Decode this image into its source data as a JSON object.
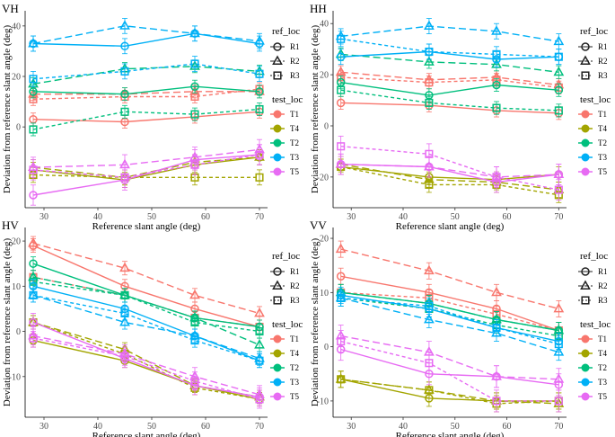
{
  "figure": {
    "xlabel": "Reference slant angle (deg)",
    "ylabel": "Deviation from reference slant angle (deg)",
    "legend": {
      "ref_title": "ref_loc",
      "refs": [
        {
          "label": "R1",
          "shape": "circle",
          "dash": "solid"
        },
        {
          "label": "R2",
          "shape": "triangle",
          "dash": "long-dash"
        },
        {
          "label": "R3",
          "shape": "square",
          "dash": "short-dash"
        }
      ],
      "test_title": "test_loc",
      "tests": [
        {
          "label": "T1",
          "color": "#F8766D"
        },
        {
          "label": "T4",
          "color": "#A3A500"
        },
        {
          "label": "T2",
          "color": "#00BF7D"
        },
        {
          "label": "T3",
          "color": "#00B0F6"
        },
        {
          "label": "T5",
          "color": "#E76BF3"
        }
      ]
    }
  },
  "chart_data": [
    {
      "type": "line",
      "title": "VH",
      "x": [
        28,
        45,
        58,
        70
      ],
      "xlim": [
        26.5,
        71.5
      ],
      "ylim": [
        -32,
        46
      ],
      "xticks": [
        30,
        40,
        50,
        60,
        70
      ],
      "yticks": [
        0,
        20,
        40
      ],
      "series": [
        {
          "test": "T1",
          "ref": "R1",
          "values": [
            3,
            2,
            4,
            6
          ],
          "err": 2.5
        },
        {
          "test": "T1",
          "ref": "R2",
          "values": [
            13,
            13,
            14,
            14
          ],
          "err": 2.5
        },
        {
          "test": "T1",
          "ref": "R3",
          "values": [
            11,
            12,
            12,
            15
          ],
          "err": 2.5
        },
        {
          "test": "T4",
          "ref": "R1",
          "values": [
            -17,
            -21,
            -15,
            -12
          ],
          "err": 3
        },
        {
          "test": "T4",
          "ref": "R2",
          "values": [
            -16,
            -20,
            -14,
            -12
          ],
          "err": 3
        },
        {
          "test": "T4",
          "ref": "R3",
          "values": [
            -19,
            -20,
            -20,
            -20
          ],
          "err": 3
        },
        {
          "test": "T2",
          "ref": "R1",
          "values": [
            14,
            13,
            16,
            14
          ],
          "err": 2.5
        },
        {
          "test": "T2",
          "ref": "R2",
          "values": [
            17,
            23,
            24,
            22
          ],
          "err": 2.5
        },
        {
          "test": "T2",
          "ref": "R3",
          "values": [
            -1,
            6,
            5,
            7
          ],
          "err": 2.5
        },
        {
          "test": "T3",
          "ref": "R1",
          "values": [
            33,
            32,
            37,
            33
          ],
          "err": 3
        },
        {
          "test": "T3",
          "ref": "R2",
          "values": [
            33,
            40,
            37,
            34
          ],
          "err": 3
        },
        {
          "test": "T3",
          "ref": "R3",
          "values": [
            19,
            22,
            25,
            21
          ],
          "err": 3
        },
        {
          "test": "T5",
          "ref": "R1",
          "values": [
            -27,
            -21,
            -13,
            -11
          ],
          "err": 4
        },
        {
          "test": "T5",
          "ref": "R2",
          "values": [
            -16,
            -15,
            -12,
            -9
          ],
          "err": 4
        },
        {
          "test": "T5",
          "ref": "R3",
          "values": [
            -17,
            -20,
            -15,
            -11
          ],
          "err": 4
        }
      ]
    },
    {
      "type": "line",
      "title": "HH",
      "x": [
        28,
        45,
        58,
        70
      ],
      "xlim": [
        26.5,
        71.5
      ],
      "ylim": [
        -32,
        45
      ],
      "xticks": [
        30,
        40,
        50,
        60,
        70
      ],
      "yticks": [
        -20,
        0,
        20,
        40
      ],
      "series": [
        {
          "test": "T1",
          "ref": "R1",
          "values": [
            9,
            8,
            6,
            5
          ],
          "err": 2.5
        },
        {
          "test": "T1",
          "ref": "R2",
          "values": [
            21,
            18,
            19,
            16
          ],
          "err": 2.5
        },
        {
          "test": "T1",
          "ref": "R3",
          "values": [
            19,
            17,
            18,
            15
          ],
          "err": 2.5
        },
        {
          "test": "T4",
          "ref": "R1",
          "values": [
            -16,
            -20,
            -21,
            -19
          ],
          "err": 3
        },
        {
          "test": "T4",
          "ref": "R2",
          "values": [
            -15,
            -21,
            -22,
            -25
          ],
          "err": 3
        },
        {
          "test": "T4",
          "ref": "R3",
          "values": [
            -16,
            -23,
            -23,
            -27
          ],
          "err": 3
        },
        {
          "test": "T2",
          "ref": "R1",
          "values": [
            17,
            12,
            16,
            14
          ],
          "err": 2.5
        },
        {
          "test": "T2",
          "ref": "R2",
          "values": [
            28,
            25,
            24,
            21
          ],
          "err": 2.5
        },
        {
          "test": "T2",
          "ref": "R3",
          "values": [
            14,
            9,
            7,
            6
          ],
          "err": 2.5
        },
        {
          "test": "T3",
          "ref": "R1",
          "values": [
            27,
            29,
            26,
            27
          ],
          "err": 3
        },
        {
          "test": "T3",
          "ref": "R2",
          "values": [
            35,
            39,
            37,
            33
          ],
          "err": 3
        },
        {
          "test": "T3",
          "ref": "R3",
          "values": [
            34,
            29,
            28,
            27
          ],
          "err": 3
        },
        {
          "test": "T5",
          "ref": "R1",
          "values": [
            -15,
            -16,
            -22,
            -19
          ],
          "err": 4
        },
        {
          "test": "T5",
          "ref": "R2",
          "values": [
            -15,
            -16,
            -20,
            -19
          ],
          "err": 4
        },
        {
          "test": "T5",
          "ref": "R3",
          "values": [
            -8,
            -11,
            -20,
            -25
          ],
          "err": 4
        }
      ]
    },
    {
      "type": "line",
      "title": "HV",
      "x": [
        28,
        45,
        58,
        70
      ],
      "xlim": [
        26.5,
        71.5
      ],
      "ylim": [
        -19,
        23
      ],
      "xticks": [
        30,
        40,
        50,
        60,
        70
      ],
      "yticks": [
        -10,
        0,
        10,
        20
      ],
      "series": [
        {
          "test": "T1",
          "ref": "R1",
          "values": [
            19,
            10,
            5,
            1
          ],
          "err": 1.5
        },
        {
          "test": "T1",
          "ref": "R2",
          "values": [
            19.5,
            14,
            8,
            4
          ],
          "err": 1.5
        },
        {
          "test": "T1",
          "ref": "R3",
          "values": [
            12,
            8,
            3,
            1
          ],
          "err": 1.5
        },
        {
          "test": "T4",
          "ref": "R1",
          "values": [
            -2,
            -6.5,
            -12,
            -15
          ],
          "err": 1.5
        },
        {
          "test": "T4",
          "ref": "R2",
          "values": [
            2,
            -4,
            -12,
            -14.5
          ],
          "err": 1.5
        },
        {
          "test": "T4",
          "ref": "R3",
          "values": [
            2,
            -5,
            -12.5,
            -15
          ],
          "err": 1.5
        },
        {
          "test": "T2",
          "ref": "R1",
          "values": [
            15,
            8,
            3,
            1
          ],
          "err": 1.5
        },
        {
          "test": "T2",
          "ref": "R2",
          "values": [
            12,
            8,
            3,
            -3
          ],
          "err": 1.5
        },
        {
          "test": "T2",
          "ref": "R3",
          "values": [
            11,
            8,
            2,
            0
          ],
          "err": 1.5
        },
        {
          "test": "T3",
          "ref": "R1",
          "values": [
            10,
            5,
            -1,
            -6.5
          ],
          "err": 1.5
        },
        {
          "test": "T3",
          "ref": "R2",
          "values": [
            8,
            2,
            -1,
            -6
          ],
          "err": 1.5
        },
        {
          "test": "T3",
          "ref": "R3",
          "values": [
            8,
            4,
            -2,
            -6.5
          ],
          "err": 1.5
        },
        {
          "test": "T5",
          "ref": "R1",
          "values": [
            2,
            -6,
            -12,
            -14.5
          ],
          "err": 2
        },
        {
          "test": "T5",
          "ref": "R2",
          "values": [
            -1,
            -5,
            -10,
            -14
          ],
          "err": 2
        },
        {
          "test": "T5",
          "ref": "R3",
          "values": [
            -1.5,
            -5.5,
            -11,
            -15
          ],
          "err": 2
        }
      ]
    },
    {
      "type": "line",
      "title": "VV",
      "x": [
        28,
        45,
        58,
        70
      ],
      "xlim": [
        26.5,
        71.5
      ],
      "ylim": [
        -13,
        22
      ],
      "xticks": [
        30,
        40,
        50,
        60,
        70
      ],
      "yticks": [
        -10,
        0,
        10,
        20
      ],
      "series": [
        {
          "test": "T1",
          "ref": "R1",
          "values": [
            13,
            10,
            7,
            3
          ],
          "err": 1.5
        },
        {
          "test": "T1",
          "ref": "R2",
          "values": [
            18,
            14,
            10,
            7
          ],
          "err": 1.5
        },
        {
          "test": "T1",
          "ref": "R3",
          "values": [
            10,
            9,
            6,
            3
          ],
          "err": 1.5
        },
        {
          "test": "T4",
          "ref": "R1",
          "values": [
            -6,
            -9.5,
            -10,
            -10
          ],
          "err": 1.5
        },
        {
          "test": "T4",
          "ref": "R2",
          "values": [
            -6,
            -8,
            -10,
            -10.5
          ],
          "err": 1.5
        },
        {
          "test": "T4",
          "ref": "R3",
          "values": [
            -6,
            -8,
            -10.5,
            -10
          ],
          "err": 1.5
        },
        {
          "test": "T2",
          "ref": "R1",
          "values": [
            10,
            8,
            5,
            3
          ],
          "err": 1.5
        },
        {
          "test": "T2",
          "ref": "R2",
          "values": [
            10,
            8,
            5,
            3
          ],
          "err": 1.5
        },
        {
          "test": "T2",
          "ref": "R3",
          "values": [
            9,
            7,
            4,
            2
          ],
          "err": 1.5
        },
        {
          "test": "T3",
          "ref": "R1",
          "values": [
            9.5,
            7,
            3.5,
            1
          ],
          "err": 1.5
        },
        {
          "test": "T3",
          "ref": "R2",
          "values": [
            9,
            5,
            2.5,
            -1
          ],
          "err": 1.5
        },
        {
          "test": "T3",
          "ref": "R3",
          "values": [
            9,
            7.5,
            3.5,
            0.5
          ],
          "err": 1.5
        },
        {
          "test": "T5",
          "ref": "R1",
          "values": [
            -0.5,
            -5,
            -5.5,
            -7
          ],
          "err": 2
        },
        {
          "test": "T5",
          "ref": "R2",
          "values": [
            2,
            -1,
            -5.5,
            -6
          ],
          "err": 2
        },
        {
          "test": "T5",
          "ref": "R3",
          "values": [
            1,
            -3,
            -10,
            -10
          ],
          "err": 2
        }
      ]
    }
  ]
}
